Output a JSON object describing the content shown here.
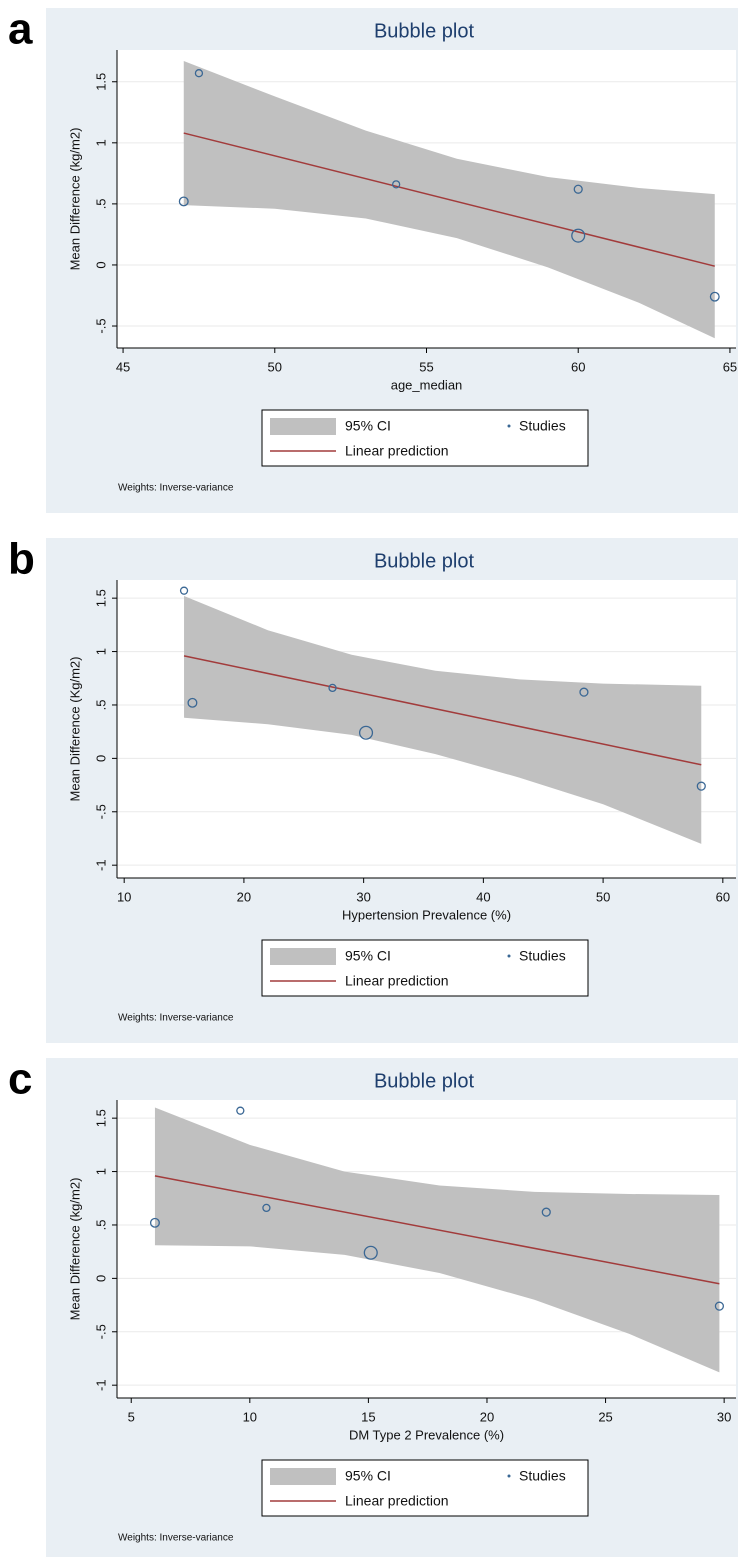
{
  "chart_data": [
    {
      "type": "scatter",
      "panel_label": "a",
      "title": "Bubble plot",
      "x_label": "age_median",
      "y_label": "Mean Difference (kg/m2)",
      "note": "Weights: Inverse-variance",
      "xlim": [
        44.8,
        65.2
      ],
      "ylim": [
        -0.68,
        1.76
      ],
      "xticks": [
        45,
        50,
        55,
        60,
        65
      ],
      "yticks": [
        {
          "value": -0.5,
          "label": "-.5"
        },
        0,
        {
          "value": 0.5,
          "label": ".5"
        },
        1,
        1.5
      ],
      "grid": true,
      "series": [
        {
          "name": "95% CI",
          "color": "#c0c0c0",
          "x": [
            47,
            50,
            53,
            56,
            59,
            62,
            64.5
          ],
          "upper": [
            1.67,
            1.38,
            1.1,
            0.87,
            0.72,
            0.63,
            0.58
          ],
          "lower": [
            0.49,
            0.46,
            0.38,
            0.22,
            -0.02,
            -0.31,
            -0.6
          ]
        },
        {
          "name": "Studies",
          "color": "#3a6794",
          "x": [
            47.5,
            47,
            54,
            60,
            60,
            64.5
          ],
          "values": [
            1.57,
            0.52,
            0.66,
            0.62,
            0.24,
            -0.26
          ],
          "sizes": [
            1,
            2,
            1,
            1.5,
            6,
            2
          ]
        },
        {
          "name": "Linear prediction",
          "color": "#a23b3b",
          "x": [
            47,
            64.5
          ],
          "values": [
            1.08,
            -0.01
          ]
        }
      ]
    },
    {
      "type": "scatter",
      "panel_label": "b",
      "title": "Bubble plot",
      "x_label": "Hypertension Prevalence (%)",
      "y_label": "Mean Difference (Kg/m2)",
      "note": "Weights: Inverse-variance",
      "xlim": [
        9.4,
        61.1
      ],
      "ylim": [
        -1.12,
        1.67
      ],
      "xticks": [
        10,
        20,
        30,
        40,
        50,
        60
      ],
      "yticks": [
        -1,
        {
          "value": -0.5,
          "label": "-.5"
        },
        0,
        {
          "value": 0.5,
          "label": ".5"
        },
        1,
        1.5
      ],
      "grid": true,
      "series": [
        {
          "name": "95% CI",
          "color": "#c0c0c0",
          "x": [
            15,
            22,
            29,
            36,
            43,
            50,
            58.2
          ],
          "upper": [
            1.52,
            1.2,
            0.97,
            0.82,
            0.74,
            0.7,
            0.68
          ],
          "lower": [
            0.38,
            0.32,
            0.22,
            0.04,
            -0.18,
            -0.43,
            -0.8
          ]
        },
        {
          "name": "Studies",
          "color": "#3a6794",
          "x": [
            15,
            15.7,
            27.4,
            30.2,
            48.4,
            58.2
          ],
          "values": [
            1.57,
            0.52,
            0.66,
            0.24,
            0.62,
            -0.26
          ],
          "sizes": [
            1,
            2,
            1,
            6,
            1.5,
            1.5
          ]
        },
        {
          "name": "Linear prediction",
          "color": "#a23b3b",
          "x": [
            15,
            58.2
          ],
          "values": [
            0.96,
            -0.06
          ]
        }
      ]
    },
    {
      "type": "scatter",
      "panel_label": "c",
      "title": "Bubble plot",
      "x_label": "DM Type 2 Prevalence (%)",
      "y_label": "Mean Difference (kg/m2)",
      "note": "Weights: Inverse-variance",
      "xlim": [
        4.4,
        30.5
      ],
      "ylim": [
        -1.12,
        1.67
      ],
      "xticks": [
        5,
        10,
        15,
        20,
        25,
        30
      ],
      "yticks": [
        -1,
        {
          "value": -0.5,
          "label": "-.5"
        },
        0,
        {
          "value": 0.5,
          "label": ".5"
        },
        1,
        1.5
      ],
      "grid": true,
      "series": [
        {
          "name": "95% CI",
          "color": "#c0c0c0",
          "x": [
            6,
            10,
            14,
            18,
            22,
            26,
            29.8
          ],
          "upper": [
            1.6,
            1.25,
            1.0,
            0.87,
            0.81,
            0.79,
            0.78
          ],
          "lower": [
            0.31,
            0.3,
            0.22,
            0.05,
            -0.2,
            -0.52,
            -0.88
          ]
        },
        {
          "name": "Studies",
          "color": "#3a6794",
          "x": [
            6,
            9.6,
            10.7,
            15.1,
            22.5,
            29.8
          ],
          "values": [
            0.52,
            1.57,
            0.66,
            0.24,
            0.62,
            -0.26
          ],
          "sizes": [
            2,
            1,
            1,
            6,
            1.5,
            1.5
          ]
        },
        {
          "name": "Linear prediction",
          "color": "#a23b3b",
          "x": [
            6,
            29.8
          ],
          "values": [
            0.96,
            -0.05
          ]
        }
      ]
    }
  ]
}
